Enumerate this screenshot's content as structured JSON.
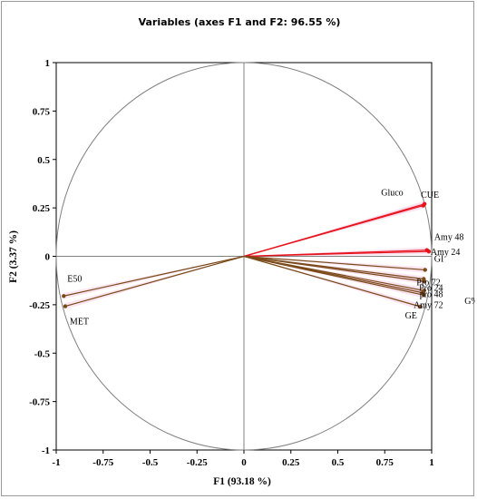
{
  "chart_data": {
    "type": "scatter",
    "title": "Variables (axes F1 and F2: 96.55 %)",
    "xlabel": "F1 (93.18 %)",
    "ylabel": "F2 (3.37 %)",
    "xlim": [
      -1,
      1
    ],
    "ylim": [
      -1,
      1
    ],
    "x_ticks": [
      "-1",
      "-0.75",
      "-0.5",
      "-0.25",
      "0",
      "0.25",
      "0.5",
      "0.75",
      "1"
    ],
    "y_ticks": [
      "1",
      "0.75",
      "0.5",
      "0.25",
      "0",
      "-0.25",
      "-0.5",
      "-0.75",
      "-1"
    ],
    "unit_circle": true,
    "colors": {
      "red_vector": "#e8121a",
      "brown_vector": "#7a4a18",
      "pink_fill": "#f6cfe6",
      "axis": "#808080"
    },
    "vectors": [
      {
        "label": "Gluco",
        "x": 0.955,
        "y": 0.262,
        "color": "red"
      },
      {
        "label": "CUE",
        "x": 0.962,
        "y": 0.27,
        "color": "red"
      },
      {
        "label": "Amy 48",
        "x": 0.975,
        "y": 0.032,
        "color": "red"
      },
      {
        "label": "Amy 24",
        "x": 0.985,
        "y": 0.025,
        "color": "red"
      },
      {
        "label": "GI",
        "x": 0.965,
        "y": -0.07,
        "color": "brown"
      },
      {
        "label": "Pro 72",
        "x": 0.958,
        "y": -0.117,
        "color": "brown"
      },
      {
        "label": "Pro 24",
        "x": 0.962,
        "y": -0.13,
        "color": "brown"
      },
      {
        "label": "pro 48",
        "x": 0.96,
        "y": -0.177,
        "color": "brown"
      },
      {
        "label": "Amy 72",
        "x": 0.952,
        "y": -0.188,
        "color": "brown"
      },
      {
        "label": "G%",
        "x": 0.958,
        "y": -0.2,
        "color": "brown"
      },
      {
        "label": "GE",
        "x": 0.94,
        "y": -0.26,
        "color": "brown"
      },
      {
        "label": "E50",
        "x": -0.96,
        "y": -0.205,
        "color": "brown"
      },
      {
        "label": "MET",
        "x": -0.952,
        "y": -0.258,
        "color": "brown"
      }
    ]
  }
}
